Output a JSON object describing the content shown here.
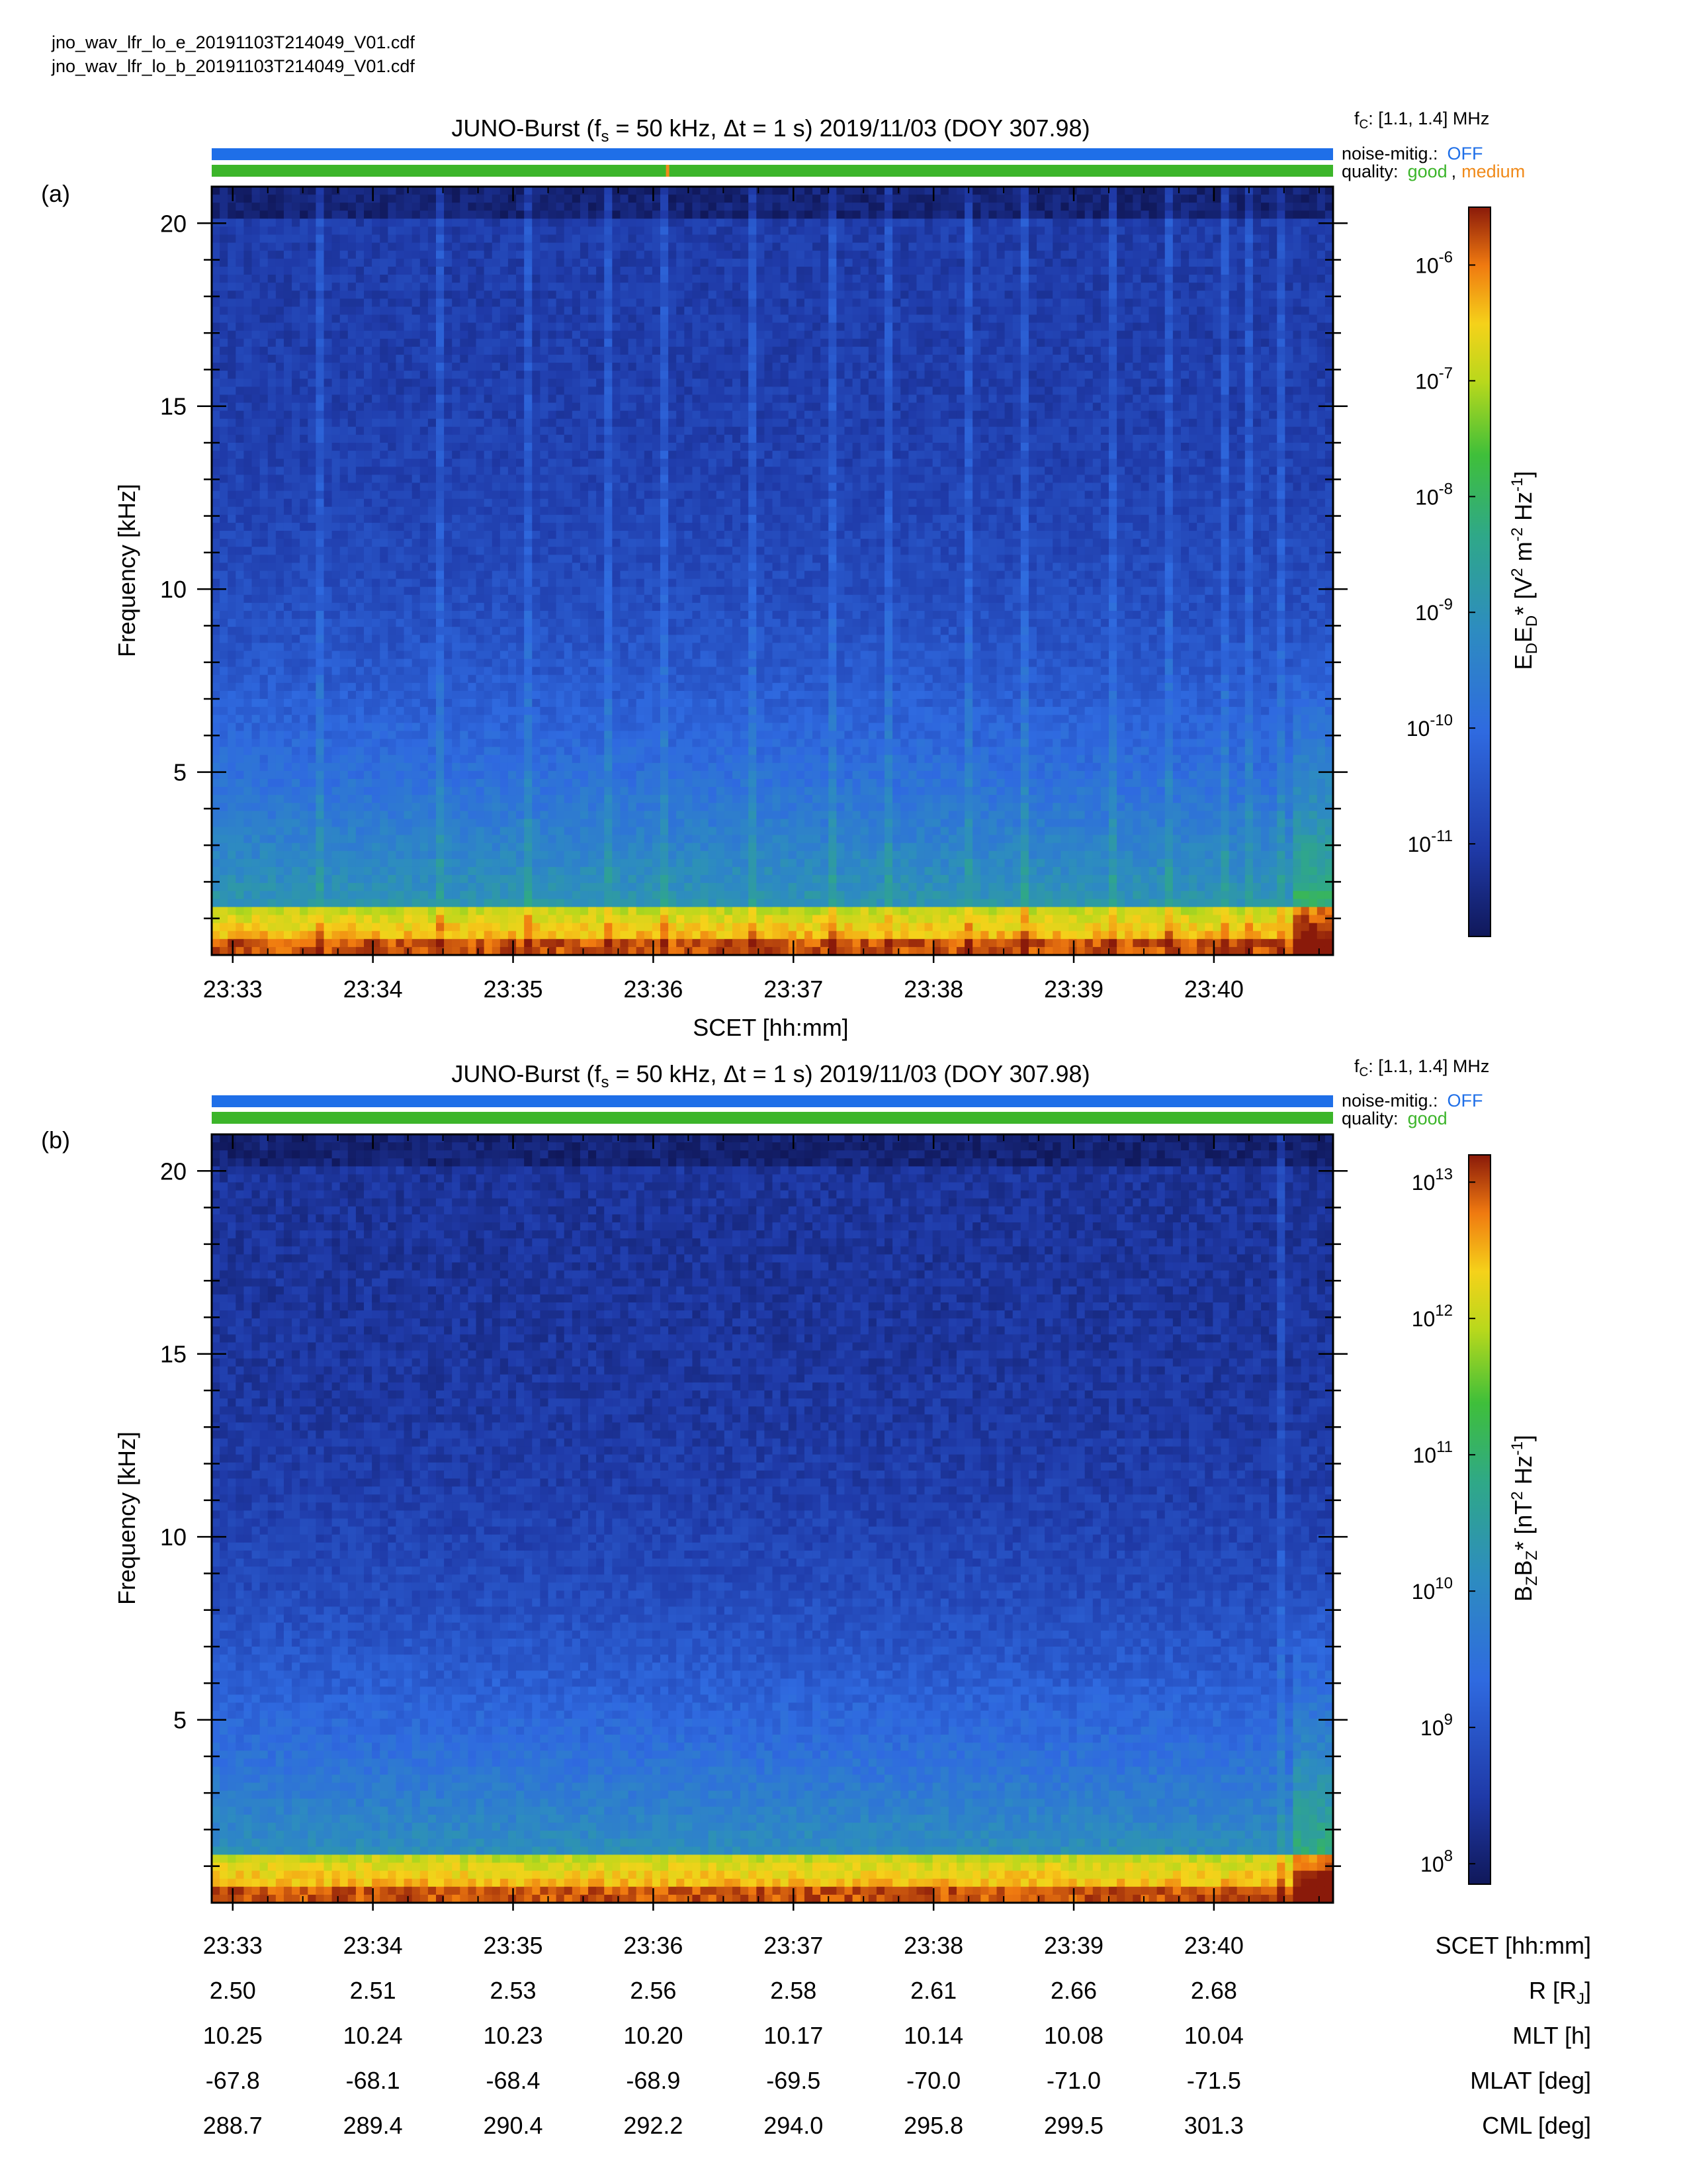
{
  "files": [
    "jno_wav_lfr_lo_e_20191103T214049_V01.cdf",
    "jno_wav_lfr_lo_b_20191103T214049_V01.cdf"
  ],
  "colors": {
    "noise_bar": "#1f6fe8",
    "quality_good": "#3cb52a",
    "quality_medium": "#f08a1a"
  },
  "chart_data": [
    {
      "type": "heatmap",
      "panel_label": "(a)",
      "title_parts": {
        "a": "JUNO-Burst (f",
        "b": "s",
        "c": " = 50 kHz, Δt = 1 s)  2019/11/03 (DOY 307.98)"
      },
      "fc_label": {
        "a": "f",
        "b": "C",
        "c": ": [1.1, 1.4] MHz"
      },
      "noise_mitig": {
        "label": "noise-mitig.:",
        "value": "OFF"
      },
      "quality": {
        "label": "quality:",
        "good": "good",
        "sep": ",",
        "medium": "medium",
        "medium_time_min": 3.1
      },
      "ylabel": "Frequency [kHz]",
      "xlabel": "SCET [hh:mm]",
      "ylim": [
        0,
        21
      ],
      "yticks": [
        5,
        10,
        15,
        20
      ],
      "xlim": [
        -0.15,
        7.85
      ],
      "xticks": [
        "23:33",
        "23:34",
        "23:35",
        "23:36",
        "23:37",
        "23:38",
        "23:39",
        "23:40"
      ],
      "colorbar": {
        "label": {
          "a": "E",
          "b": "D",
          "c": "E",
          "d": "D",
          "e": "* [V",
          "f": "2",
          "g": " m",
          "h": "-2",
          "i": " Hz",
          "j": "-1",
          "k": "]"
        },
        "log_range": [
          -11.8,
          -5.5
        ],
        "ticks": [
          {
            "exp": -6,
            "base": "10",
            "sup": "-6"
          },
          {
            "exp": -7,
            "base": "10",
            "sup": "-7"
          },
          {
            "exp": -8,
            "base": "10",
            "sup": "-8"
          },
          {
            "exp": -9,
            "base": "10",
            "sup": "-9"
          },
          {
            "exp": -10,
            "base": "10",
            "sup": "-10"
          },
          {
            "exp": -11,
            "base": "10",
            "sup": "-11"
          }
        ]
      }
    },
    {
      "type": "heatmap",
      "panel_label": "(b)",
      "title_parts": {
        "a": "JUNO-Burst (f",
        "b": "s",
        "c": " = 50 kHz, Δt = 1 s)  2019/11/03 (DOY 307.98)"
      },
      "fc_label": {
        "a": "f",
        "b": "C",
        "c": ": [1.1, 1.4] MHz"
      },
      "noise_mitig": {
        "label": "noise-mitig.:",
        "value": "OFF"
      },
      "quality": {
        "label": "quality:",
        "good": "good"
      },
      "ylabel": "Frequency [kHz]",
      "ylim": [
        0,
        21
      ],
      "yticks": [
        5,
        10,
        15,
        20
      ],
      "xlim": [
        -0.15,
        7.85
      ],
      "xticks": [
        "23:33",
        "23:34",
        "23:35",
        "23:36",
        "23:37",
        "23:38",
        "23:39",
        "23:40"
      ],
      "colorbar": {
        "label": {
          "a": "B",
          "b": "Z",
          "c": "B",
          "d": "Z",
          "e": "* [nT",
          "f": "2",
          "g": " Hz",
          "h": "-1",
          "i": "]"
        },
        "log_range": [
          7.85,
          13.2
        ],
        "ticks": [
          {
            "exp": 13,
            "base": "10",
            "sup": "13"
          },
          {
            "exp": 12,
            "base": "10",
            "sup": "12"
          },
          {
            "exp": 11,
            "base": "10",
            "sup": "11"
          },
          {
            "exp": 10,
            "base": "10",
            "sup": "10"
          },
          {
            "exp": 9,
            "base": "10",
            "sup": "9"
          },
          {
            "exp": 8,
            "base": "10",
            "sup": "8"
          }
        ]
      }
    }
  ],
  "ephemeris": {
    "rows": [
      {
        "label": "SCET [hh:mm]",
        "values": [
          "23:33",
          "23:34",
          "23:35",
          "23:36",
          "23:37",
          "23:38",
          "23:39",
          "23:40"
        ]
      },
      {
        "label_parts": {
          "a": "R [R",
          "b": "J",
          "c": "]"
        },
        "values": [
          "2.50",
          "2.51",
          "2.53",
          "2.56",
          "2.58",
          "2.61",
          "2.66",
          "2.68"
        ]
      },
      {
        "label": "MLT [h]",
        "values": [
          "10.25",
          "10.24",
          "10.23",
          "10.20",
          "10.17",
          "10.14",
          "10.08",
          "10.04"
        ]
      },
      {
        "label": "MLAT [deg]",
        "values": [
          "-67.8",
          "-68.1",
          "-68.4",
          "-68.9",
          "-69.5",
          "-70.0",
          "-71.0",
          "-71.5"
        ]
      },
      {
        "label": "CML [deg]",
        "values": [
          "288.7",
          "289.4",
          "290.4",
          "292.2",
          "294.0",
          "295.8",
          "299.5",
          "301.3"
        ]
      }
    ]
  }
}
